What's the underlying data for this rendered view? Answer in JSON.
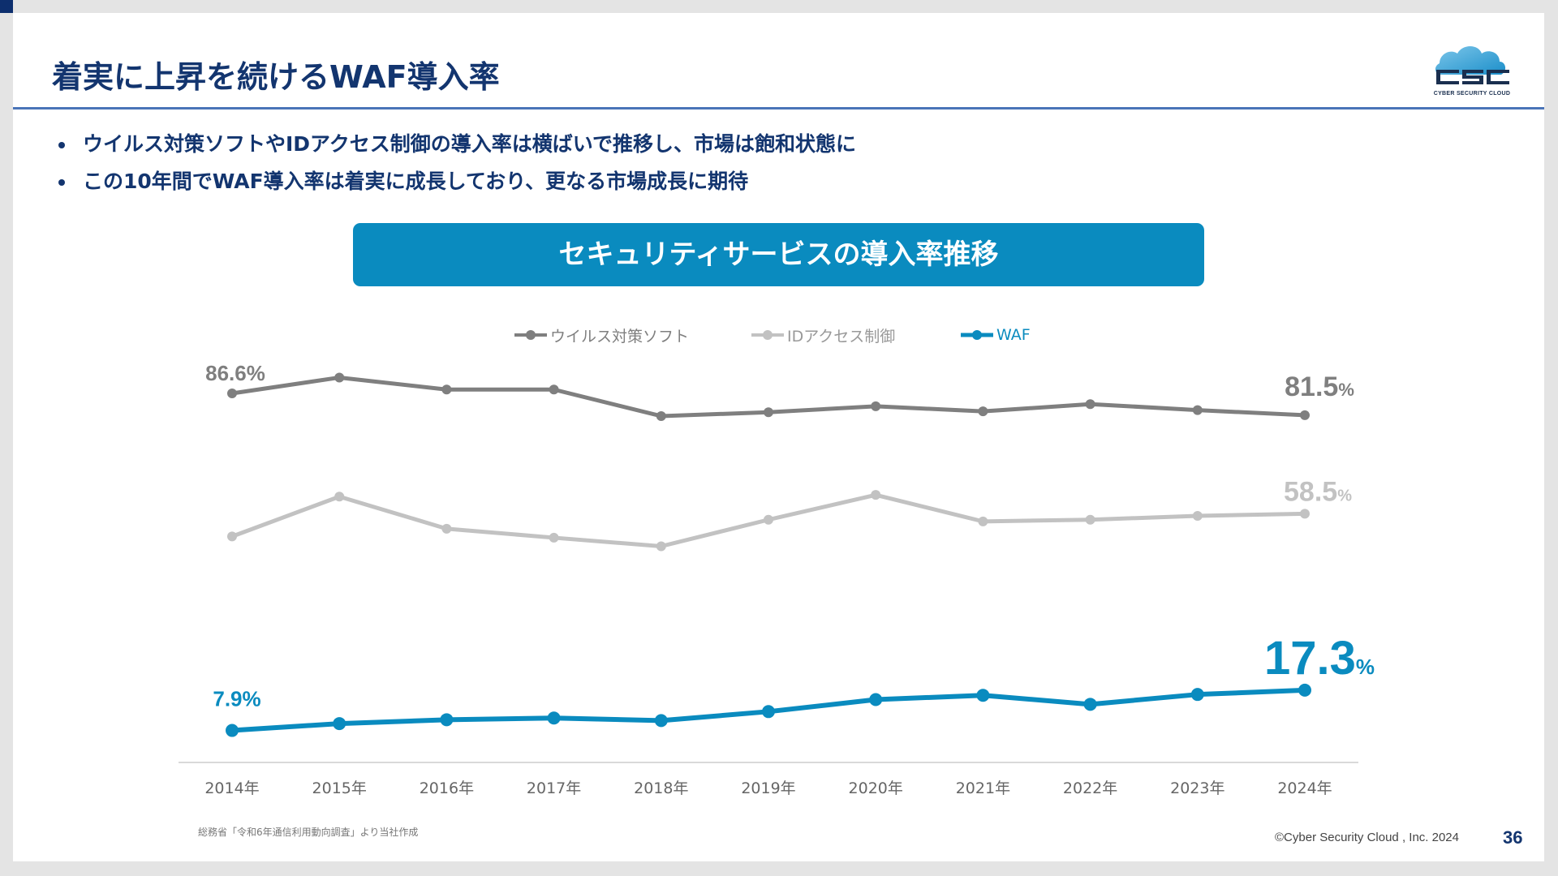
{
  "slide": {
    "title": "着実に上昇を続けるWAF導入率",
    "bullets": [
      "ウイルス対策ソフトやIDアクセス制御の導入率は横ばいで推移し、市場は飽和状態に",
      "この10年間でWAF導入率は着実に成長しており、更なる市場成長に期待"
    ],
    "logo": {
      "name": "CSC",
      "tagline": "CYBER SECURITY CLOUD"
    },
    "source_note": "総務省「令和6年通信利用動向調査」より当社作成",
    "copyright": "©Cyber Security Cloud , Inc. 2024",
    "page_number": "36",
    "colors": {
      "navy": "#13356f",
      "accent": "#0a8bbf"
    }
  },
  "chart_data": {
    "type": "line",
    "title": "セキュリティサービスの導入率推移",
    "xlabel": "",
    "ylabel": "",
    "categories": [
      "2014年",
      "2015年",
      "2016年",
      "2017年",
      "2018年",
      "2019年",
      "2020年",
      "2021年",
      "2022年",
      "2023年",
      "2024年"
    ],
    "ylim": [
      0,
      100
    ],
    "grid": false,
    "legend_position": "top-center",
    "series": [
      {
        "name": "ウイルス対策ソフト",
        "color": "#7f7f7f",
        "values": [
          86.6,
          90.3,
          87.5,
          87.5,
          81.3,
          82.2,
          83.6,
          82.4,
          84.1,
          82.7,
          81.5
        ]
      },
      {
        "name": "IDアクセス制御",
        "color": "#c2c2c2",
        "values": [
          53.2,
          62.5,
          55.0,
          52.9,
          50.9,
          57.1,
          62.9,
          56.7,
          57.1,
          58.0,
          58.5
        ]
      },
      {
        "name": "WAF",
        "color": "#0a8bbf",
        "values": [
          7.9,
          9.5,
          10.4,
          10.8,
          10.2,
          12.3,
          15.1,
          16.1,
          14.0,
          16.3,
          17.3
        ]
      }
    ],
    "annotations": [
      {
        "series": 0,
        "index": 0,
        "number": "86.6",
        "unit": "%"
      },
      {
        "series": 0,
        "index": 10,
        "number": "81.5",
        "unit": "%"
      },
      {
        "series": 1,
        "index": 10,
        "number": "58.5",
        "unit": "%"
      },
      {
        "series": 2,
        "index": 0,
        "number": "7.9",
        "unit": "%"
      },
      {
        "series": 2,
        "index": 10,
        "number": "17.3",
        "unit": "%"
      }
    ]
  }
}
